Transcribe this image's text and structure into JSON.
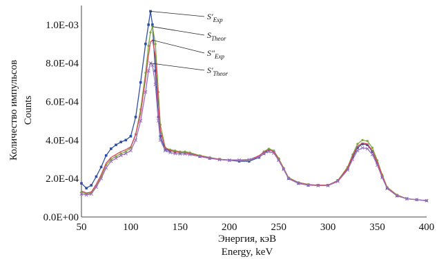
{
  "chart_data": {
    "type": "line",
    "xlabel_lines": [
      "Энергия, кэВ",
      "Energy, keV"
    ],
    "ylabel_lines": [
      "Количество импульсов",
      "Counts"
    ],
    "xlim": [
      50,
      400
    ],
    "ylim": [
      0,
      0.0011
    ],
    "x_ticks": [
      50,
      100,
      150,
      200,
      250,
      300,
      350,
      400
    ],
    "y_ticks": [
      0,
      0.0002,
      0.0004,
      0.0006,
      0.0008,
      0.001
    ],
    "y_tick_labels": [
      "0.0E+00",
      "2.0E-04",
      "4.0E-04",
      "6.0E-04",
      "8.0E-04",
      "1.0E-03"
    ],
    "x": [
      50,
      55,
      60,
      65,
      70,
      75,
      80,
      85,
      90,
      95,
      100,
      105,
      110,
      115,
      118,
      120,
      122,
      125,
      128,
      130,
      135,
      140,
      145,
      150,
      155,
      160,
      170,
      180,
      190,
      200,
      210,
      220,
      230,
      235,
      240,
      245,
      250,
      255,
      260,
      270,
      280,
      290,
      300,
      310,
      320,
      325,
      330,
      335,
      340,
      345,
      350,
      355,
      360,
      370,
      380,
      390,
      400
    ],
    "series": [
      {
        "name": "S′Exp",
        "label_main": "S′",
        "label_sub": "Exp",
        "color": "#2d4fa3",
        "marker": "square",
        "values": [
          0.000175,
          0.00015,
          0.000165,
          0.00021,
          0.00026,
          0.00032,
          0.000355,
          0.000375,
          0.00039,
          0.0004,
          0.00042,
          0.00052,
          0.0007,
          0.0009,
          0.001,
          0.00107,
          0.001,
          0.00076,
          0.00052,
          0.00042,
          0.00035,
          0.000345,
          0.00034,
          0.000335,
          0.000335,
          0.00033,
          0.000315,
          0.000305,
          0.0003,
          0.000295,
          0.00029,
          0.00029,
          0.00031,
          0.00033,
          0.00035,
          0.00034,
          0.0003,
          0.00025,
          0.0002,
          0.000175,
          0.000165,
          0.000165,
          0.000165,
          0.00019,
          0.00025,
          0.00031,
          0.00036,
          0.00038,
          0.000375,
          0.00034,
          0.00028,
          0.00021,
          0.00015,
          0.00011,
          9.5e-05,
          9e-05,
          8.5e-05
        ]
      },
      {
        "name": "STheor",
        "label_main": "S",
        "label_sub": "Theor",
        "color": "#7aa83c",
        "marker": "dot",
        "values": [
          0.00013,
          0.00012,
          0.000125,
          0.00016,
          0.00021,
          0.00027,
          0.0003,
          0.000315,
          0.00033,
          0.00034,
          0.00036,
          0.00043,
          0.00056,
          0.00075,
          0.00089,
          0.00096,
          0.00099,
          0.0009,
          0.00065,
          0.00048,
          0.00036,
          0.00035,
          0.000345,
          0.00034,
          0.00034,
          0.000335,
          0.00032,
          0.00031,
          0.0003,
          0.000295,
          0.000295,
          0.000295,
          0.000315,
          0.00034,
          0.000355,
          0.000345,
          0.000305,
          0.000255,
          0.000205,
          0.00018,
          0.00017,
          0.000165,
          0.000165,
          0.00019,
          0.00026,
          0.000325,
          0.00038,
          0.0004,
          0.000395,
          0.00036,
          0.000295,
          0.00022,
          0.000155,
          0.000115,
          9.5e-05,
          9e-05,
          8.5e-05
        ]
      },
      {
        "name": "S\"Exp",
        "label_main": "S\"",
        "label_sub": "Exp",
        "color": "#d9485a",
        "marker": "none",
        "values": [
          0.000135,
          0.000125,
          0.00013,
          0.00017,
          0.00022,
          0.00028,
          0.00031,
          0.000325,
          0.00034,
          0.00035,
          0.000365,
          0.00043,
          0.00054,
          0.00072,
          0.00084,
          0.00091,
          0.00092,
          0.00084,
          0.0006,
          0.00045,
          0.00036,
          0.000345,
          0.00034,
          0.000335,
          0.000335,
          0.00033,
          0.000318,
          0.000308,
          0.0003,
          0.000297,
          0.000297,
          0.000298,
          0.000318,
          0.000338,
          0.00035,
          0.00034,
          0.0003,
          0.000252,
          0.000202,
          0.000178,
          0.000168,
          0.000165,
          0.000165,
          0.000188,
          0.000255,
          0.000318,
          0.000368,
          0.000385,
          0.00038,
          0.000345,
          0.000285,
          0.000215,
          0.000152,
          0.000112,
          9.5e-05,
          9e-05,
          8.5e-05
        ]
      },
      {
        "name": "S′Theor",
        "label_main": "S′",
        "label_sub": "Theor",
        "color": "#9a6dbd",
        "marker": "x",
        "values": [
          0.00012,
          0.000115,
          0.00012,
          0.000155,
          0.0002,
          0.000255,
          0.00029,
          0.000305,
          0.00032,
          0.00033,
          0.000345,
          0.0004,
          0.0005,
          0.00065,
          0.00076,
          0.0008,
          0.00079,
          0.00069,
          0.0005,
          0.0004,
          0.000345,
          0.000335,
          0.00033,
          0.000328,
          0.000328,
          0.000325,
          0.000315,
          0.000305,
          0.000298,
          0.000295,
          0.000296,
          0.000298,
          0.000312,
          0.00033,
          0.00034,
          0.000332,
          0.000295,
          0.000248,
          0.0002,
          0.000175,
          0.000166,
          0.000163,
          0.000163,
          0.000185,
          0.000245,
          0.0003,
          0.000345,
          0.00036,
          0.000355,
          0.000325,
          0.00027,
          0.000205,
          0.000148,
          0.00011,
          9.5e-05,
          9e-05,
          8.5e-05
        ]
      }
    ],
    "grid": false,
    "legend": "annotations"
  }
}
